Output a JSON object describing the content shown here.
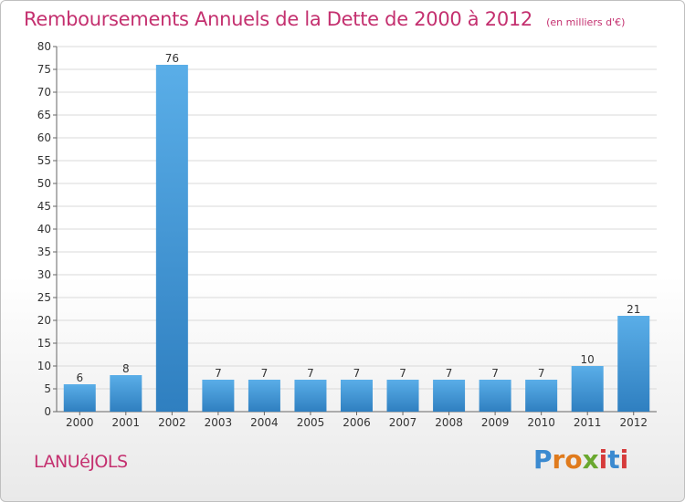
{
  "header": {
    "title": "Remboursements Annuels de la Dette de 2000 à 2012",
    "subtitle": "(en milliers d'€)"
  },
  "footer": {
    "commune": "LANUéJOLS",
    "brand": "Proxiti"
  },
  "colors": {
    "title": "#c4306f",
    "bar_light": "#5aaee8",
    "bar_dark": "#2f7fc0",
    "grid": "#d9d9d9"
  },
  "chart_data": {
    "type": "bar",
    "categories": [
      "2000",
      "2001",
      "2002",
      "2003",
      "2004",
      "2005",
      "2006",
      "2007",
      "2008",
      "2009",
      "2010",
      "2011",
      "2012"
    ],
    "values": [
      6,
      8,
      76,
      7,
      7,
      7,
      7,
      7,
      7,
      7,
      7,
      10,
      21
    ],
    "data_labels": [
      "6",
      "8",
      "76",
      "7",
      "7",
      "7",
      "7",
      "7",
      "7",
      "7",
      "7",
      "10",
      "21"
    ],
    "ylim": [
      0,
      80
    ],
    "yticks": [
      0,
      5,
      10,
      15,
      20,
      25,
      30,
      35,
      40,
      45,
      50,
      55,
      60,
      65,
      70,
      75,
      80
    ],
    "grid": true
  }
}
